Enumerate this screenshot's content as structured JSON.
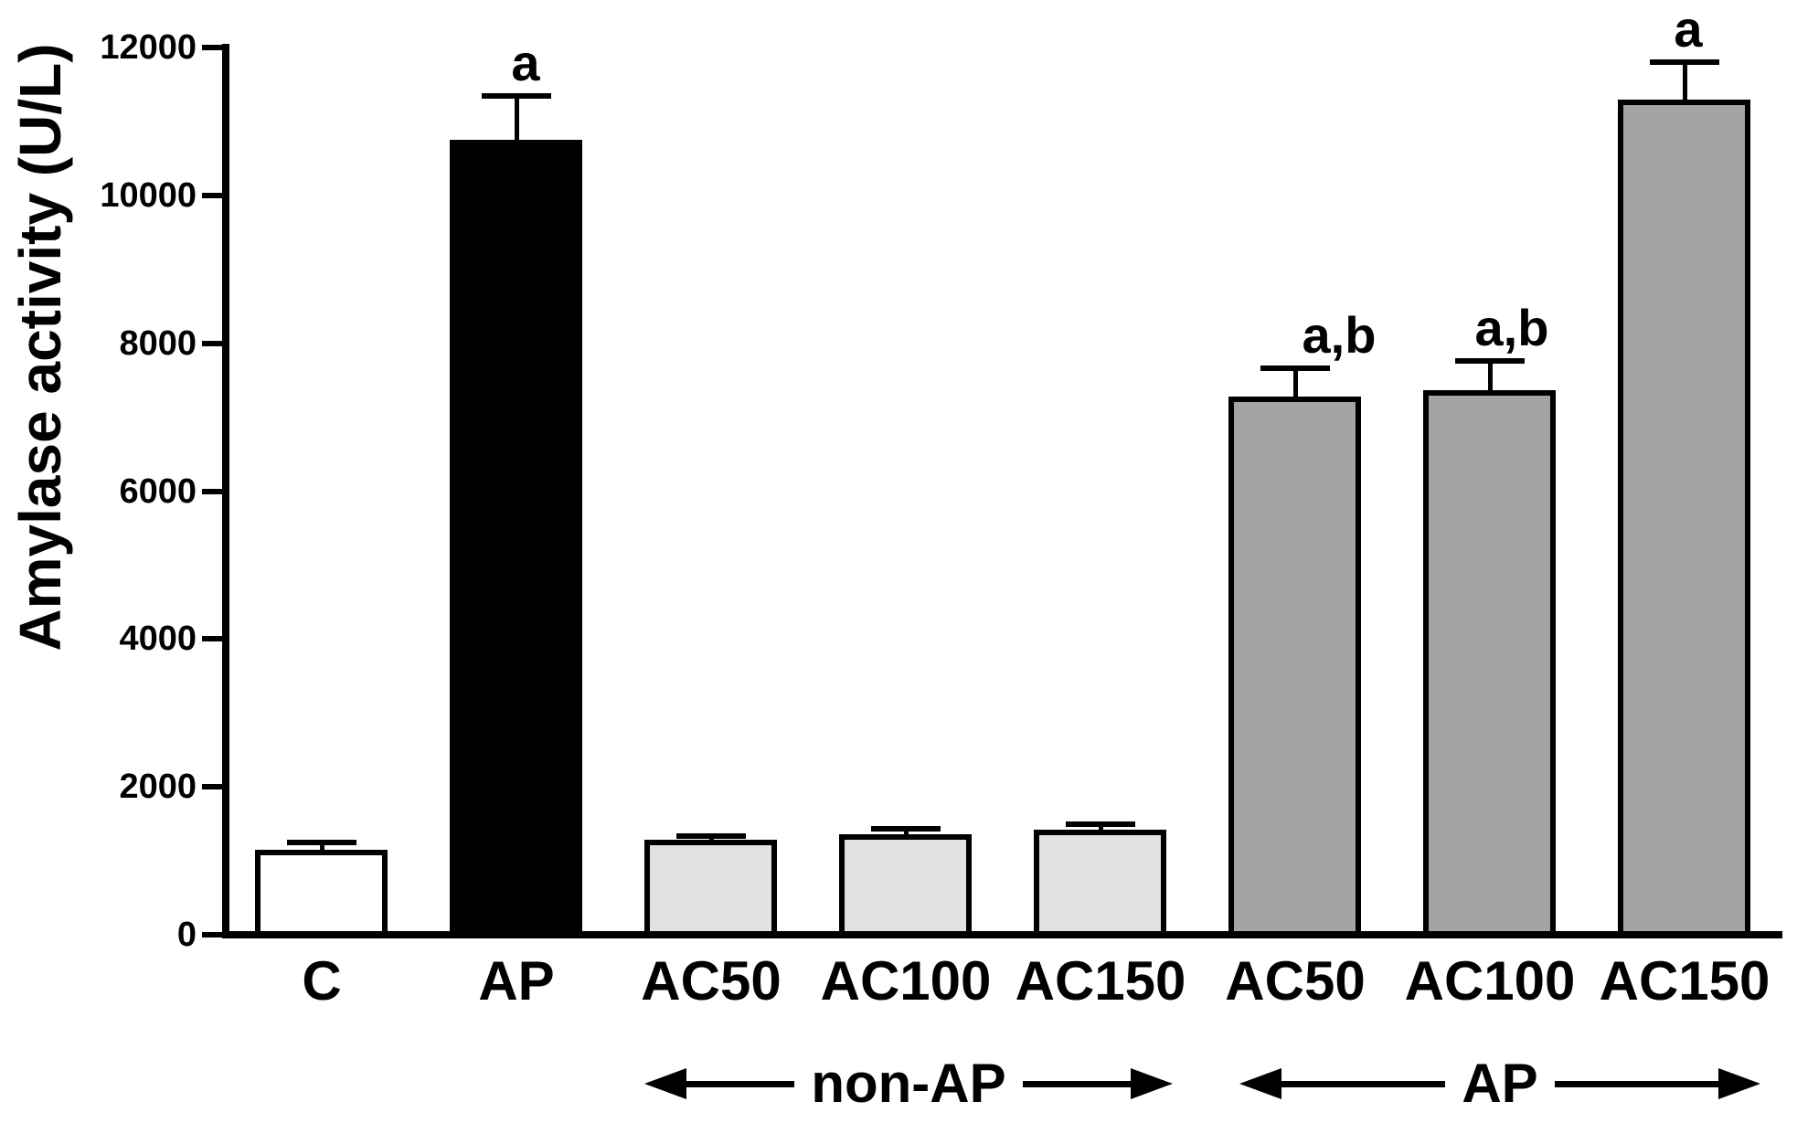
{
  "figure": {
    "background": "#ffffff",
    "text_color": "#000000"
  },
  "chart_data": {
    "type": "bar",
    "title": "",
    "ylabel": "Amylase activity (U/L)",
    "xlabel": "",
    "ylim": [
      0,
      12000
    ],
    "yticks": [
      0,
      2000,
      4000,
      6000,
      8000,
      10000,
      12000
    ],
    "grid": false,
    "legend_position": "none",
    "categories": [
      "C",
      "AP",
      "AC50",
      "AC100",
      "AC150",
      "AC50",
      "AC100",
      "AC150"
    ],
    "series": [
      {
        "name": "Amylase activity (U/L)",
        "values": [
          1150,
          10750,
          1280,
          1360,
          1420,
          7280,
          7360,
          11300
        ],
        "errors_plus": [
          100,
          600,
          60,
          70,
          80,
          380,
          400,
          500
        ]
      }
    ],
    "bar_fills": [
      "#ffffff",
      "#000000",
      "#e1e1e1",
      "#e1e1e1",
      "#e1e1e1",
      "#a4a4a4",
      "#a4a4a4",
      "#a4a4a4"
    ],
    "bar_border_color": "#000000",
    "significance_labels": [
      "",
      "a",
      "",
      "",
      "",
      "a,b",
      "a,b",
      "a"
    ],
    "group_annotations": [
      {
        "label": "non-AP",
        "style": "double-arrow",
        "covers_categories": [
          "AC50",
          "AC100",
          "AC150"
        ]
      },
      {
        "label": "AP",
        "style": "double-arrow",
        "covers_categories": [
          "AC50",
          "AC100",
          "AC150"
        ]
      }
    ]
  }
}
